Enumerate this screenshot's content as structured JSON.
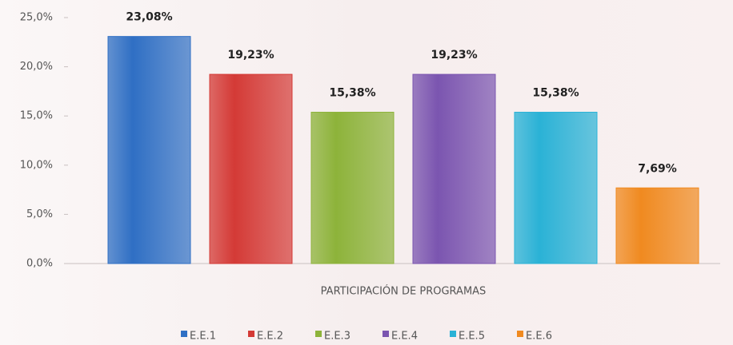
{
  "chart_data": {
    "type": "bar",
    "categories": [
      "PARTICIPACIÓN DE PROGRAMAS"
    ],
    "series": [
      {
        "name": "E.E.1",
        "color": "#2f6fc4",
        "values": [
          23.08
        ],
        "value_labels": [
          "23,08%"
        ]
      },
      {
        "name": "E.E.2",
        "color": "#d43a36",
        "values": [
          19.23
        ],
        "value_labels": [
          "19,23%"
        ]
      },
      {
        "name": "E.E.3",
        "color": "#8db33a",
        "values": [
          15.38
        ],
        "value_labels": [
          "15,38%"
        ]
      },
      {
        "name": "E.E.4",
        "color": "#7b55b0",
        "values": [
          19.23
        ],
        "value_labels": [
          "19,23%"
        ]
      },
      {
        "name": "E.E.5",
        "color": "#2ab2d6",
        "values": [
          15.38
        ],
        "value_labels": [
          "15,38%"
        ]
      },
      {
        "name": "E.E.6",
        "color": "#f08a20",
        "values": [
          7.69
        ],
        "value_labels": [
          "7,69%"
        ]
      }
    ],
    "ylim": [
      0,
      25
    ],
    "yticks": [
      {
        "value": 0,
        "label": "0,0%"
      },
      {
        "value": 5,
        "label": "5,0%"
      },
      {
        "value": 10,
        "label": "10,0%"
      },
      {
        "value": 15,
        "label": "15,0%"
      },
      {
        "value": 20,
        "label": "20,0%"
      },
      {
        "value": 25,
        "label": "25,0%"
      }
    ],
    "grid": false,
    "legend": "bottom"
  }
}
